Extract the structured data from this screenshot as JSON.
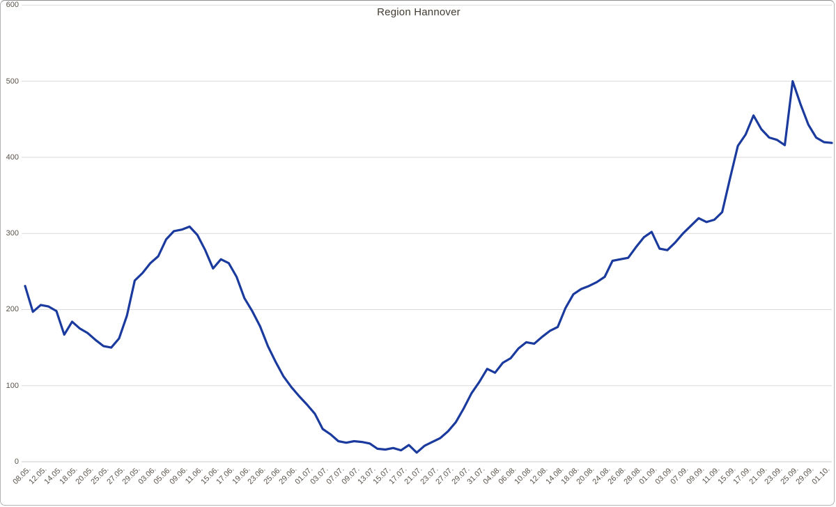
{
  "chart_data": {
    "type": "line",
    "title": "Region Hannover",
    "series_name": "Region Hannover",
    "xlabel": "",
    "ylabel": "",
    "ylim": [
      0,
      600
    ],
    "y_ticks": [
      600,
      500,
      400,
      300,
      200,
      100,
      0
    ],
    "grid": "horizontal",
    "legend": "none",
    "line_color": "#1a3a9e",
    "gridline_color": "#d9d9d9",
    "axis_line_color": "#c9c9c9",
    "label_color": "#59524a",
    "title_color": "#403a32",
    "x_tick_labels": [
      "08.05.",
      "12.05.",
      "14.05.",
      "18.05.",
      "20.05.",
      "25.05.",
      "27.05.",
      "29.05.",
      "03.06.",
      "05.06.",
      "09.06.",
      "11.06.",
      "15.06.",
      "17.06.",
      "19.06.",
      "23.06.",
      "25.06.",
      "29.06.",
      "01.07.",
      "03.07.",
      "07.07.",
      "09.07.",
      "13.07.",
      "15.07.",
      "17.07.",
      "21.07.",
      "23.07.",
      "27.07.",
      "29.07.",
      "31.07.",
      "04.08.",
      "06.08.",
      "10.08.",
      "12.08.",
      "14.08.",
      "18.08.",
      "20.08.",
      "24.08.",
      "26.08.",
      "28.08.",
      "01.09.",
      "03.09.",
      "07.09.",
      "09.09.",
      "11.09.",
      "15.09.",
      "17.09.",
      "21.09.",
      "23.09.",
      "25.09.",
      "29.09.",
      "01.10."
    ],
    "x_label_every_nth_point": 2,
    "values": [
      231,
      197,
      206,
      204,
      198,
      167,
      184,
      175,
      169,
      160,
      152,
      150,
      162,
      192,
      238,
      248,
      261,
      270,
      292,
      303,
      305,
      309,
      298,
      278,
      254,
      266,
      261,
      243,
      215,
      198,
      178,
      152,
      131,
      112,
      98,
      86,
      75,
      63,
      43,
      36,
      27,
      25,
      27,
      26,
      24,
      17,
      16,
      18,
      15,
      22,
      12,
      21,
      26,
      31,
      40,
      52,
      70,
      90,
      105,
      122,
      117,
      130,
      136,
      149,
      157,
      155,
      164,
      172,
      177,
      202,
      220,
      227,
      231,
      236,
      243,
      264,
      266,
      268,
      282,
      295,
      302,
      280,
      278,
      288,
      300,
      310,
      320,
      315,
      318,
      328,
      372,
      415,
      430,
      455,
      437,
      426,
      423,
      416,
      500,
      470,
      443,
      426,
      420,
      419
    ]
  }
}
